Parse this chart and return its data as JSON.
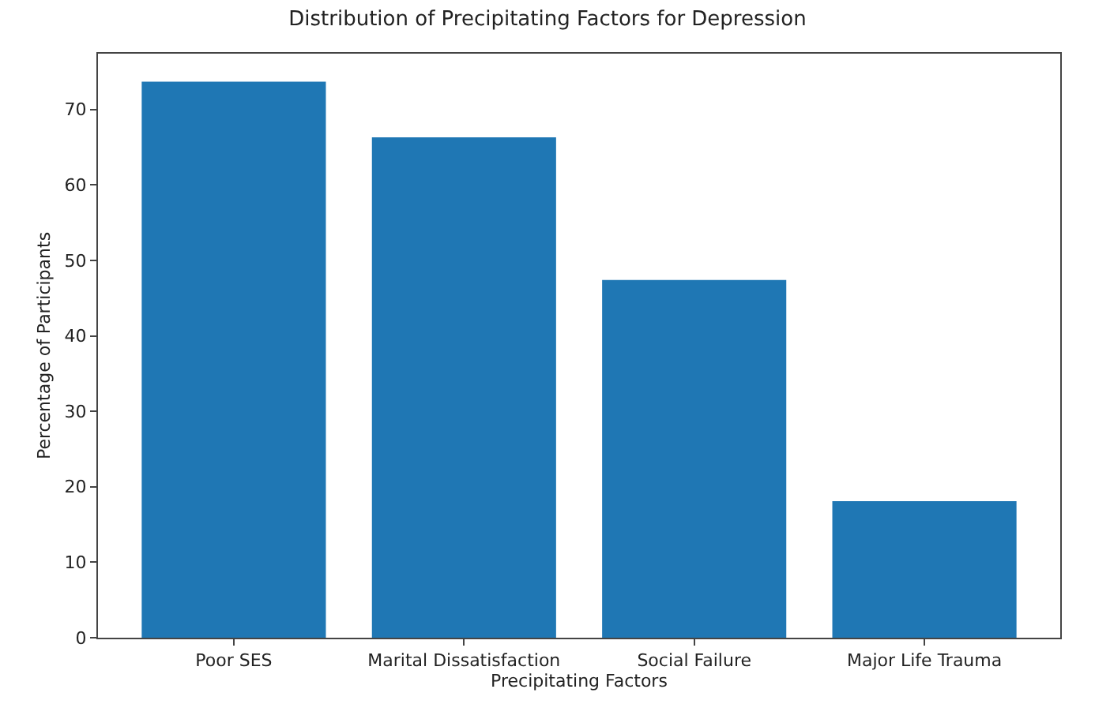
{
  "chart_data": {
    "type": "bar",
    "title": "Distribution of Precipitating Factors for Depression",
    "xlabel": "Precipitating Factors",
    "ylabel": "Percentage of Participants",
    "categories": [
      "Poor SES",
      "Marital Dissatisfaction",
      "Social Failure",
      "Major Life Trauma"
    ],
    "values": [
      73.7,
      66.3,
      47.4,
      18.1
    ],
    "color": "#1f77b4",
    "ylim": [
      0,
      77.4
    ],
    "yticks": [
      0,
      10,
      20,
      30,
      40,
      50,
      60,
      70
    ]
  }
}
